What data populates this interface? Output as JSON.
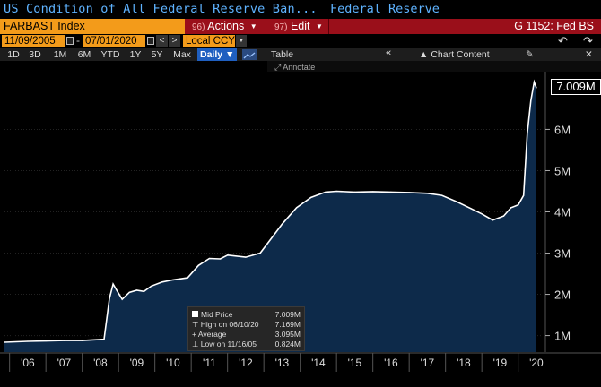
{
  "window": {
    "title": "US Condition of All Federal Reserve Ban...",
    "source": "Federal Reserve"
  },
  "toolbar": {
    "ticker": "FARBAST Index",
    "actions_num": "96)",
    "actions_label": "Actions",
    "edit_num": "97)",
    "edit_label": "Edit",
    "screen_id": "G 1152: Fed BS"
  },
  "range": {
    "start_date": "11/09/2005",
    "end_date": "07/01/2020",
    "currency": "Local CCY",
    "prev": "<",
    "next": ">",
    "undo": "↶",
    "redo": "↷"
  },
  "periods": [
    "1D",
    "3D",
    "1M",
    "6M",
    "YTD",
    "1Y",
    "5Y",
    "Max"
  ],
  "frequency": "Daily",
  "tools": {
    "table": "Table",
    "chart_content": "Chart Content",
    "annotate": "Annotate"
  },
  "legend": {
    "mid_label": "Mid Price",
    "mid_value": "7.009M",
    "high_label": "High on 06/10/20",
    "high_value": "7.169M",
    "avg_label": "Average",
    "avg_value": "3.095M",
    "low_label": "Low on 11/16/05",
    "low_value": "0.824M"
  },
  "last_value": "7.009M",
  "colors": {
    "ticker_bg": "#f39b1a",
    "toolbar_red": "#9a0f1a",
    "title_blue": "#5fb3ff",
    "series_fill": "#0d2a4a",
    "series_line": "#ffffff"
  },
  "chart_data": {
    "type": "area",
    "title": "",
    "xlabel": "",
    "ylabel": "",
    "x_ticks": [
      "'06",
      "'07",
      "'08",
      "'09",
      "'10",
      "'11",
      "'12",
      "'13",
      "'14",
      "'15",
      "'16",
      "'17",
      "'18",
      "'19",
      "'20"
    ],
    "y_ticks": [
      "1M",
      "2M",
      "3M",
      "4M",
      "5M",
      "6M"
    ],
    "y_tick_values": [
      1,
      2,
      3,
      4,
      5,
      6
    ],
    "ylim": [
      0.6,
      7.4
    ],
    "xlim": [
      2005.86,
      2020.65
    ],
    "series": [
      {
        "values_unit": "millions USD",
        "x": [
          2005.86,
          2006.5,
          2007.0,
          2007.5,
          2008.0,
          2008.6,
          2008.75,
          2008.85,
          2008.95,
          2009.1,
          2009.3,
          2009.5,
          2009.7,
          2009.9,
          2010.2,
          2010.5,
          2010.9,
          2011.2,
          2011.5,
          2011.8,
          2012.0,
          2012.5,
          2012.9,
          2013.2,
          2013.5,
          2013.9,
          2014.3,
          2014.7,
          2015.0,
          2015.5,
          2016.0,
          2016.5,
          2017.0,
          2017.5,
          2017.9,
          2018.3,
          2018.7,
          2019.0,
          2019.3,
          2019.6,
          2019.8,
          2020.0,
          2020.15,
          2020.25,
          2020.35,
          2020.44,
          2020.5
        ],
        "values": [
          0.84,
          0.86,
          0.87,
          0.88,
          0.88,
          0.91,
          1.9,
          2.25,
          2.1,
          1.88,
          2.05,
          2.1,
          2.07,
          2.2,
          2.3,
          2.35,
          2.4,
          2.7,
          2.87,
          2.86,
          2.95,
          2.9,
          3.0,
          3.35,
          3.7,
          4.1,
          4.35,
          4.48,
          4.5,
          4.48,
          4.49,
          4.48,
          4.47,
          4.45,
          4.4,
          4.25,
          4.08,
          3.95,
          3.8,
          3.9,
          4.1,
          4.17,
          4.4,
          5.9,
          6.7,
          7.15,
          7.01
        ]
      }
    ],
    "legend": "bottom-left"
  }
}
